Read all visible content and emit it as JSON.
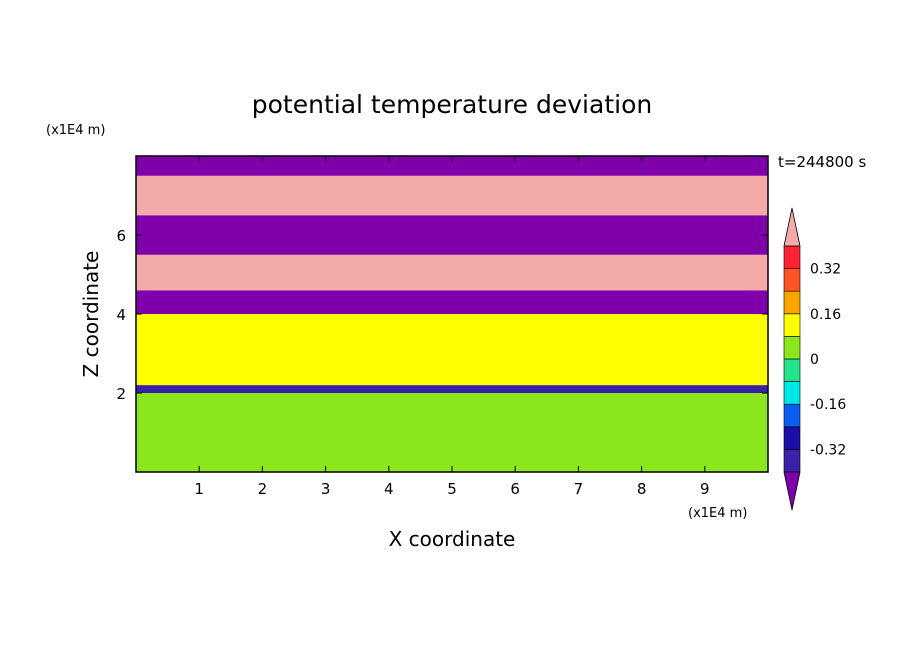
{
  "chart_data": {
    "type": "heatmap",
    "title": "potential temperature deviation",
    "time_label": "t=244800 s",
    "xlabel": "X coordinate",
    "ylabel": "Z coordinate",
    "x_unit": "(x1E4 m)",
    "y_unit": "(x1E4 m)",
    "xlim": [
      0,
      10
    ],
    "ylim": [
      0,
      8
    ],
    "x_ticks": [
      1,
      2,
      3,
      4,
      5,
      6,
      7,
      8,
      9
    ],
    "y_ticks": [
      2,
      4,
      6
    ],
    "colorbar": {
      "levels": [
        -0.4,
        -0.32,
        -0.24,
        -0.16,
        -0.08,
        0,
        0.08,
        0.16,
        0.24,
        0.32,
        0.4
      ],
      "labels": [
        "-0.32",
        "-0.16",
        "0",
        "0.16",
        "0.32"
      ],
      "label_values": [
        -0.32,
        -0.16,
        0,
        0.16,
        0.32
      ],
      "colors": [
        "#7f00aa",
        "#3a1fa8",
        "#1a0ea6",
        "#0a5ef0",
        "#00e6e6",
        "#22e38a",
        "#8be61e",
        "#ffff00",
        "#ffa500",
        "#ff5522",
        "#ff2233",
        "#f5aaaa"
      ],
      "extend": "both"
    },
    "bands": [
      {
        "z": [
          0.0,
          2.0
        ],
        "value": 0.03,
        "note": "mostly green"
      },
      {
        "z": [
          2.0,
          2.2
        ],
        "value": -0.35
      },
      {
        "z": [
          2.2,
          4.0
        ],
        "value": 0.1
      },
      {
        "z": [
          4.0,
          4.6
        ],
        "value": -0.45
      },
      {
        "z": [
          4.6,
          5.5
        ],
        "value": 0.45
      },
      {
        "z": [
          5.5,
          6.5
        ],
        "value": -0.45
      },
      {
        "z": [
          6.5,
          7.5
        ],
        "value": 0.45
      },
      {
        "z": [
          7.5,
          8.0
        ],
        "value": -0.45
      }
    ]
  }
}
